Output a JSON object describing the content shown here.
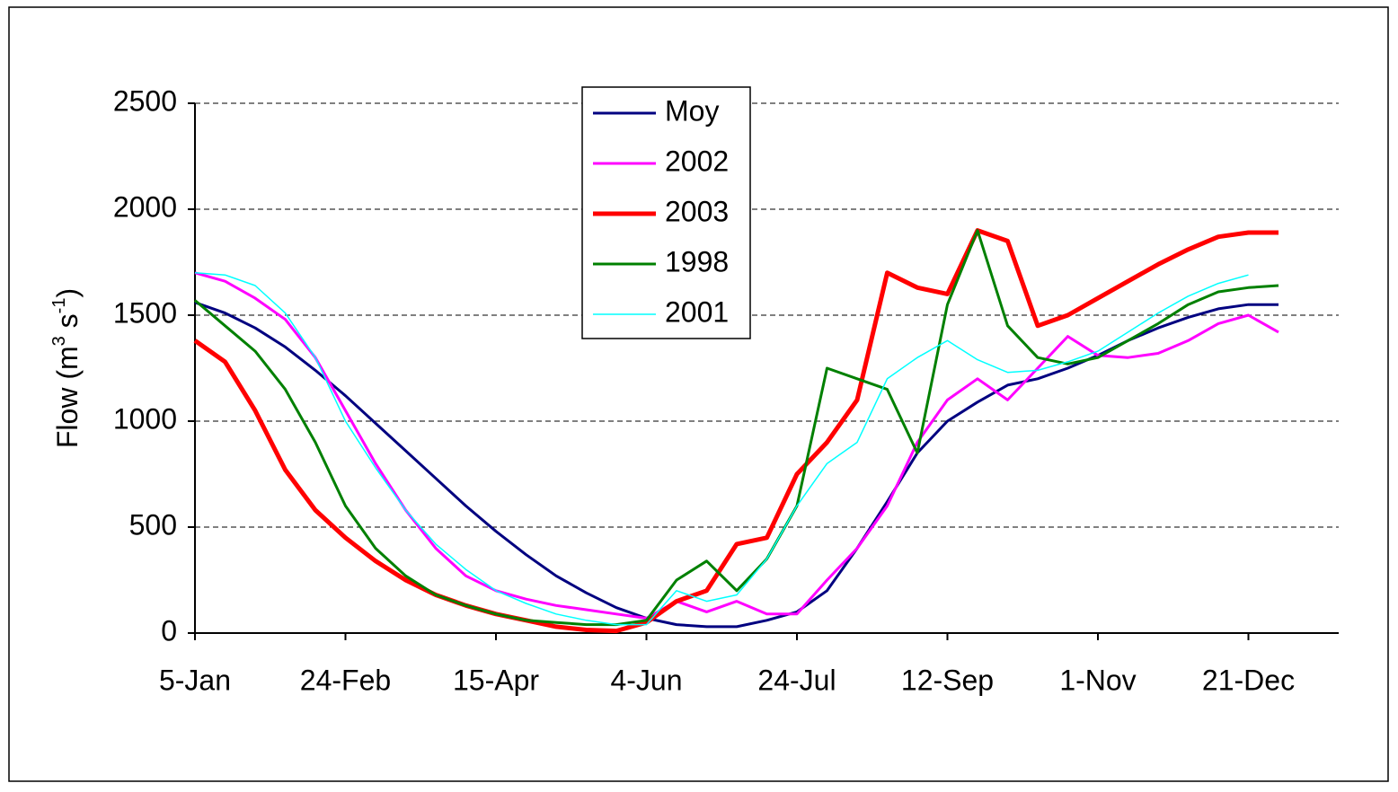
{
  "chart_data": {
    "type": "line",
    "ylabel": [
      "Flow (m",
      "3",
      " s",
      "-1",
      ")"
    ],
    "x": [
      5,
      15,
      25,
      35,
      45,
      55,
      65,
      75,
      85,
      95,
      105,
      115,
      125,
      135,
      145,
      155,
      165,
      175,
      185,
      195,
      205,
      215,
      225,
      235,
      245,
      255,
      265,
      275,
      285,
      295,
      305,
      315,
      325,
      335,
      345,
      355,
      365
    ],
    "xlim": [
      5,
      385
    ],
    "xticks": [
      {
        "value": 5,
        "label": "5-Jan"
      },
      {
        "value": 55,
        "label": "24-Feb"
      },
      {
        "value": 105,
        "label": "15-Apr"
      },
      {
        "value": 155,
        "label": "4-Jun"
      },
      {
        "value": 205,
        "label": "24-Jul"
      },
      {
        "value": 255,
        "label": "12-Sep"
      },
      {
        "value": 305,
        "label": "1-Nov"
      },
      {
        "value": 355,
        "label": "21-Dec"
      }
    ],
    "ylim": [
      0,
      2500
    ],
    "yticks": [
      0,
      500,
      1000,
      1500,
      2000,
      2500
    ],
    "grid": true,
    "legend": "top-center",
    "series": [
      {
        "name": "Moy",
        "color": "#000080",
        "width": 3,
        "values": [
          1560,
          1510,
          1440,
          1350,
          1240,
          1120,
          990,
          860,
          730,
          600,
          480,
          370,
          270,
          190,
          120,
          70,
          40,
          30,
          30,
          60,
          100,
          200,
          400,
          620,
          850,
          1000,
          1090,
          1170,
          1200,
          1250,
          1310,
          1380,
          1440,
          1490,
          1530,
          1550,
          1550
        ]
      },
      {
        "name": "2002",
        "color": "#ff00ff",
        "width": 3,
        "values": [
          1700,
          1660,
          1580,
          1480,
          1300,
          1050,
          800,
          580,
          400,
          270,
          200,
          160,
          130,
          110,
          90,
          70,
          150,
          100,
          150,
          90,
          90,
          250,
          400,
          600,
          900,
          1100,
          1200,
          1100,
          1250,
          1400,
          1310,
          1300,
          1320,
          1380,
          1460,
          1500,
          1420
        ]
      },
      {
        "name": "2003",
        "color": "#ff0000",
        "width": 5,
        "values": [
          1380,
          1280,
          1050,
          770,
          580,
          450,
          340,
          250,
          180,
          130,
          90,
          60,
          30,
          15,
          10,
          50,
          150,
          200,
          420,
          450,
          750,
          900,
          1100,
          1700,
          1630,
          1600,
          1900,
          1850,
          1450,
          1500,
          1580,
          1660,
          1740,
          1810,
          1870,
          1890,
          1890
        ]
      },
      {
        "name": "1998",
        "color": "#008000",
        "width": 3,
        "values": [
          1570,
          1450,
          1330,
          1150,
          900,
          600,
          400,
          270,
          180,
          130,
          90,
          60,
          50,
          40,
          40,
          60,
          250,
          340,
          200,
          350,
          600,
          1250,
          1200,
          1150,
          850,
          1550,
          1900,
          1450,
          1300,
          1270,
          1300,
          1380,
          1460,
          1550,
          1610,
          1630,
          1640
        ]
      },
      {
        "name": "2001",
        "color": "#00ffff",
        "width": 1.5,
        "values": [
          1700,
          1690,
          1640,
          1510,
          1300,
          1000,
          780,
          580,
          420,
          300,
          200,
          140,
          90,
          60,
          40,
          40,
          200,
          150,
          180,
          350,
          600,
          800,
          900,
          1200,
          1300,
          1380,
          1290,
          1230,
          1240,
          1280,
          1330,
          1420,
          1510,
          1590,
          1650,
          1690,
          null
        ]
      }
    ]
  }
}
